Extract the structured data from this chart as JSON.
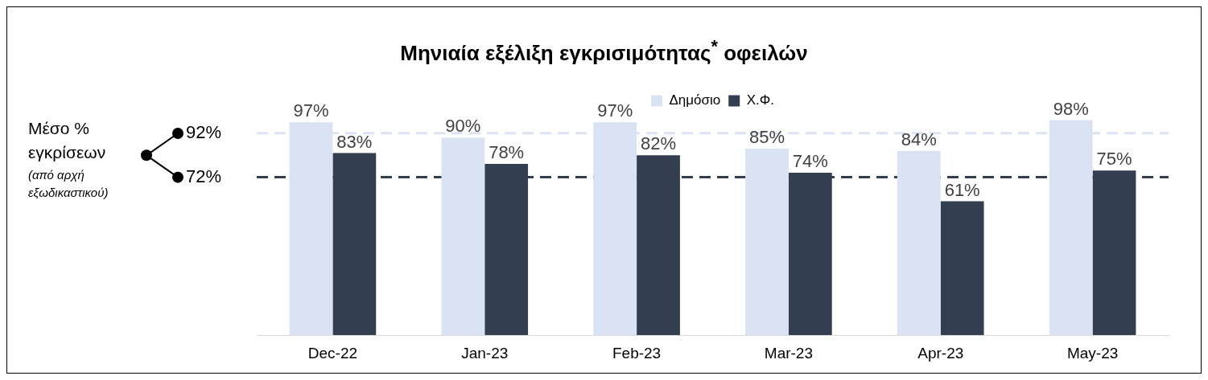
{
  "chart_data": {
    "type": "bar",
    "title": "Μηνιαία εξέλιξη εγκρισιμότητας$^{*}$ οφειλών",
    "categories": [
      "Dec-22",
      "Jan-23",
      "Feb-23",
      "Mar-23",
      "Apr-23",
      "May-23"
    ],
    "series": [
      {
        "name": "Δημόσιο",
        "color": "#dae3f3",
        "values": [
          97,
          90,
          97,
          85,
          84,
          98
        ],
        "value_labels": [
          "97%",
          "90%",
          "97%",
          "85%",
          "84%",
          "98%"
        ]
      },
      {
        "name": "Χ.Φ.",
        "color": "#333f50",
        "values": [
          83,
          78,
          82,
          74,
          61,
          75
        ],
        "value_labels": [
          "83%",
          "78%",
          "82%",
          "74%",
          "61%",
          "75%"
        ]
      }
    ],
    "legend": "top",
    "grid": false,
    "ref_lines": [
      {
        "axis": "y",
        "value": 92,
        "label": "92%",
        "color": "#dae3f3",
        "line_style": "dashed"
      },
      {
        "axis": "y",
        "value": 72,
        "label": "72%",
        "color": "#333f50",
        "line_style": "dashed"
      }
    ],
    "annotations": [
      "Μέσο % εγκρίσεων",
      "(από αρχή εξωδικαστικού)"
    ]
  }
}
